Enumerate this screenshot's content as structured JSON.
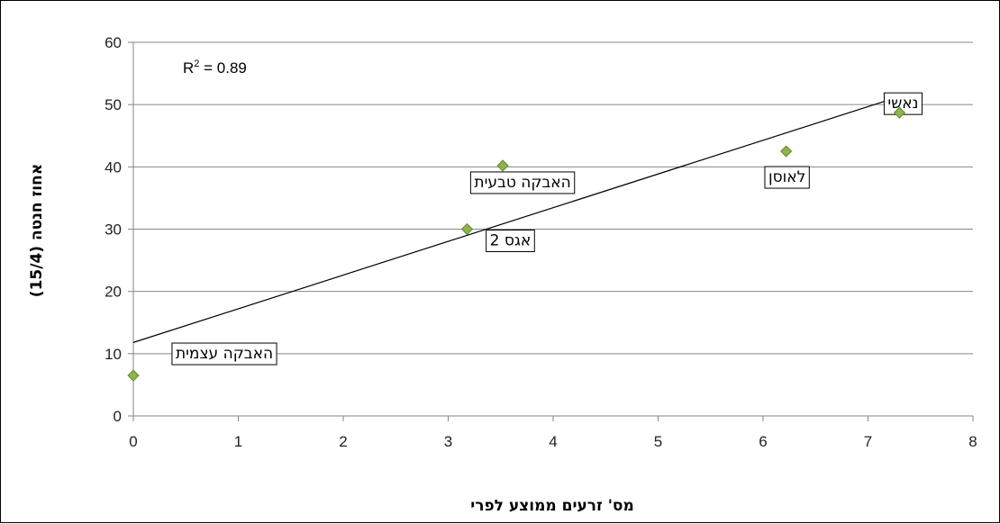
{
  "chart_data": {
    "type": "scatter",
    "xlabel": "מס' זרעים ממוצע לפרי",
    "ylabel": "אחוז חנטה (15/4)",
    "xlim": [
      0,
      8
    ],
    "ylim": [
      0,
      60
    ],
    "x_ticks": [
      "0",
      "1",
      "2",
      "3",
      "4",
      "5",
      "6",
      "7",
      "8"
    ],
    "y_ticks": [
      "0",
      "10",
      "20",
      "30",
      "40",
      "50",
      "60"
    ],
    "grid": "horizontal",
    "marker": "diamond",
    "marker_color": "#8db34a",
    "points": [
      {
        "x": 0.0,
        "y": 6.5,
        "label": "האבקה עצמית"
      },
      {
        "x": 3.18,
        "y": 30.0,
        "label": "אגס 2"
      },
      {
        "x": 3.52,
        "y": 40.2,
        "label": "האבקה טבעית"
      },
      {
        "x": 6.22,
        "y": 42.5,
        "label": "לאוסן"
      },
      {
        "x": 7.3,
        "y": 48.7,
        "label": "נאשי"
      }
    ],
    "trendline": {
      "type": "linear",
      "x0": 0,
      "y0": 11.8,
      "x1": 7.3,
      "y1": 51.3
    },
    "annotation": {
      "text": "R² = 0.89",
      "r_label": "R",
      "superscript": "2",
      "rest": " = 0.89"
    }
  }
}
